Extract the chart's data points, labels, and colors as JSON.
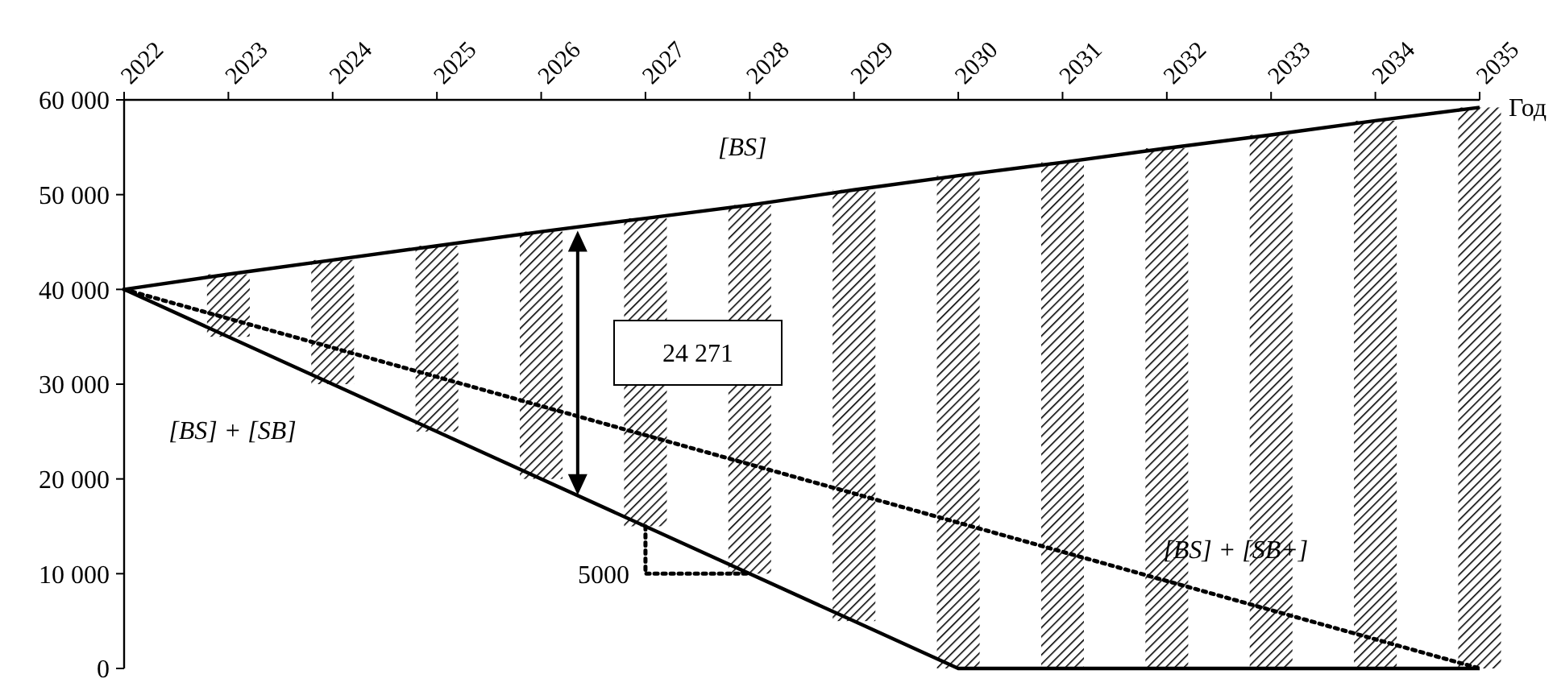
{
  "chart_data": {
    "type": "bar",
    "xlabel": "Год",
    "xlim": [
      2022,
      2035
    ],
    "xticks": [
      2022,
      2023,
      2024,
      2025,
      2026,
      2027,
      2028,
      2029,
      2030,
      2031,
      2032,
      2033,
      2034,
      2035
    ],
    "ylim": [
      0,
      60000
    ],
    "yticks": [
      0,
      {
        "value": 10000,
        "label": "10 000"
      },
      {
        "value": 20000,
        "label": "20 000"
      },
      {
        "value": 30000,
        "label": "30 000"
      },
      {
        "value": 40000,
        "label": "40 000"
      },
      {
        "value": 50000,
        "label": "50 000"
      },
      {
        "value": 60000,
        "label": "60 000"
      }
    ],
    "grid": false,
    "legend": false,
    "series": [
      {
        "color": "#000000",
        "x": [
          2023,
          2024,
          2025,
          2026,
          2027,
          2028,
          2029,
          2030,
          2031,
          2032,
          2033,
          2034,
          2035
        ],
        "base": [
          35000,
          30000,
          25000,
          20000,
          15000,
          10000,
          5000,
          0,
          0,
          0,
          0,
          0,
          0
        ],
        "values": [
          6600,
          13100,
          19600,
          26100,
          32500,
          38900,
          45500,
          52000,
          53400,
          54900,
          56300,
          57800,
          59200
        ]
      },
      {
        "type": "line",
        "name": "[BS]",
        "color": "#000000",
        "line_style": "solid",
        "x": [
          2022,
          2023,
          2024,
          2025,
          2026,
          2027,
          2028,
          2029,
          2030,
          2031,
          2032,
          2033,
          2034,
          2035
        ],
        "values": [
          40000,
          41600,
          43100,
          44600,
          46100,
          47500,
          48900,
          50500,
          52000,
          53400,
          54900,
          56300,
          57800,
          59200
        ]
      },
      {
        "type": "line",
        "name": "[BS] + [SB]",
        "color": "#000000",
        "line_style": "solid",
        "x": [
          2022,
          2030,
          2035
        ],
        "values": [
          40000,
          0,
          0
        ]
      },
      {
        "type": "line",
        "name": "[BS] + [SB+]",
        "color": "#000000",
        "line_style": "dotted",
        "x": [
          2022,
          2035
        ],
        "values": [
          40000,
          0
        ]
      },
      {
        "type": "line",
        "color": "#000000",
        "line_style": "dotted",
        "x": [
          2027,
          2027,
          2028
        ],
        "values": [
          15000,
          10000,
          10000
        ]
      }
    ],
    "annotations": [
      "24 271",
      "5000"
    ]
  }
}
